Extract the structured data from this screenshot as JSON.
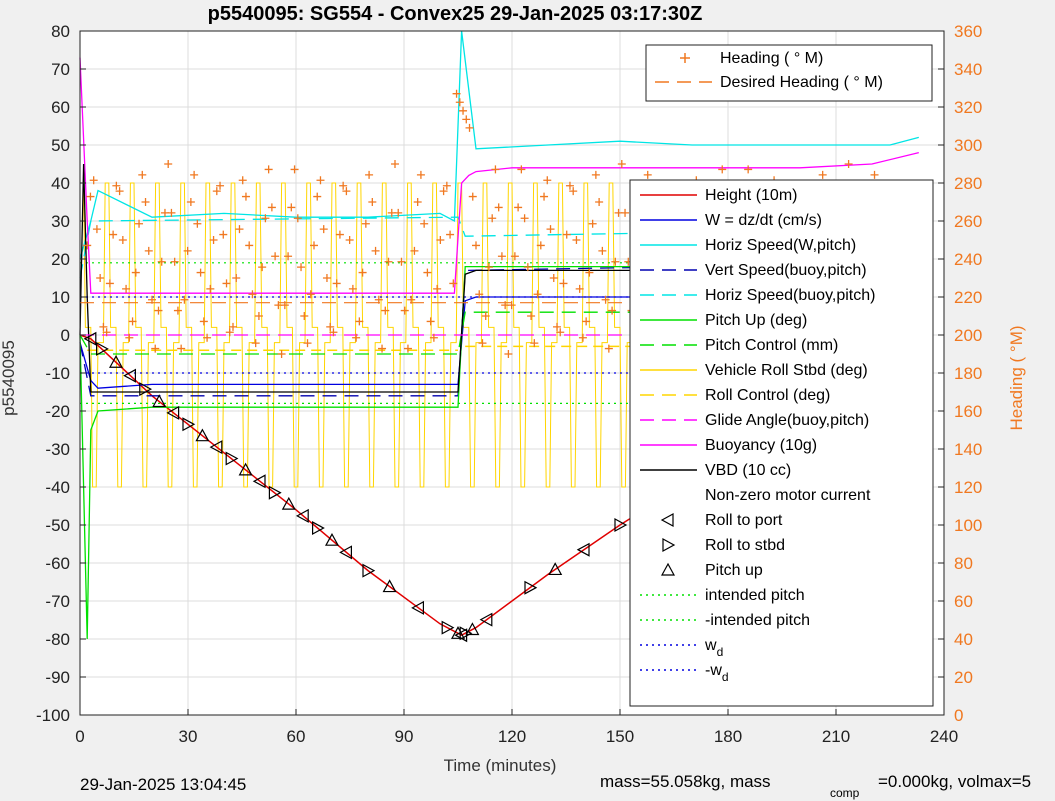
{
  "chart_data": {
    "type": "line",
    "title": "p5540095: SG554 - Convex25 29-Jan-2025 03:17:30Z",
    "xlabel": "Time (minutes)",
    "ylabel_left": "p5540095",
    "ylabel_right": "Heading (  °M)",
    "xlim": [
      0,
      240
    ],
    "ylim_left": [
      -100,
      80
    ],
    "ylim_right": [
      0,
      360
    ],
    "x_ticks": [
      "0",
      "30",
      "60",
      "90",
      "120",
      "150",
      "180",
      "210",
      "240"
    ],
    "y_left_ticks": [
      "80",
      "70",
      "60",
      "50",
      "40",
      "30",
      "20",
      "10",
      "0",
      "-10",
      "-20",
      "-30",
      "-40",
      "-50",
      "-60",
      "-70",
      "-80",
      "-90",
      "-100"
    ],
    "y_right_ticks": [
      "360",
      "340",
      "320",
      "300",
      "280",
      "260",
      "240",
      "220",
      "200",
      "180",
      "160",
      "140",
      "120",
      "100",
      "80",
      "60",
      "40",
      "20",
      "0"
    ],
    "grid": true,
    "legend_right_axis": {
      "placement": "top-right",
      "entries": [
        {
          "label": "Heading (  ° M)",
          "color": "#f07820",
          "style": "plus"
        },
        {
          "label": "Desired Heading (    ° M)",
          "color": "#f07820",
          "style": "dashed"
        }
      ]
    },
    "legend_main": {
      "placement": "right",
      "entries": [
        {
          "label": "Height (10m)",
          "color": "#e00000",
          "style": "solid"
        },
        {
          "label": "W = dz/dt (cm/s)",
          "color": "#0000e0",
          "style": "solid"
        },
        {
          "label": "Horiz Speed(W,pitch)",
          "color": "#00e5e5",
          "style": "solid"
        },
        {
          "label": "Vert Speed(buoy,pitch)",
          "color": "#0000b0",
          "style": "dashed"
        },
        {
          "label": "Horiz Speed(buoy,pitch)",
          "color": "#00e5e5",
          "style": "dashed"
        },
        {
          "label": "Pitch Up (deg)",
          "color": "#00e000",
          "style": "solid"
        },
        {
          "label": "Pitch Control (mm)",
          "color": "#00e000",
          "style": "dashed"
        },
        {
          "label": "Vehicle Roll Stbd (deg)",
          "color": "#ffd500",
          "style": "solid"
        },
        {
          "label": "Roll Control (deg)",
          "color": "#ffd500",
          "style": "dashed"
        },
        {
          "label": "Glide Angle(buoy,pitch)",
          "color": "#ff00ff",
          "style": "dashed"
        },
        {
          "label": "Buoyancy (10g)",
          "color": "#ff00ff",
          "style": "solid"
        },
        {
          "label": "VBD (10 cc)",
          "color": "#000000",
          "style": "solid"
        },
        {
          "label": "Non-zero motor current",
          "color": "#000000",
          "style": "none"
        },
        {
          "label": "Roll to port",
          "color": "#000000",
          "style": "tri-left"
        },
        {
          "label": "Roll to stbd",
          "color": "#000000",
          "style": "tri-right"
        },
        {
          "label": "Pitch up",
          "color": "#000000",
          "style": "tri-up"
        },
        {
          "label": "intended pitch",
          "color": "#00e000",
          "style": "dotted"
        },
        {
          "label": "-intended pitch",
          "color": "#00e000",
          "style": "dotted"
        },
        {
          "label": "w",
          "sub": "d",
          "color": "#0000e0",
          "style": "dotted"
        },
        {
          "label": "-w",
          "sub": "d",
          "color": "#0000e0",
          "style": "dotted"
        }
      ]
    },
    "series": [
      {
        "name": "Height (10m)",
        "color": "#e00000",
        "x": [
          0,
          3,
          20,
          40,
          60,
          80,
          100,
          106,
          110,
          130,
          150,
          170,
          190,
          210,
          233
        ],
        "y": [
          0,
          -1,
          -16,
          -31,
          -46,
          -62,
          -76,
          -79,
          -77,
          -63,
          -50,
          -38,
          -25,
          -12,
          -2
        ]
      },
      {
        "name": "W = dz/dt (cm/s)",
        "color": "#0000e0",
        "x": [
          0,
          3,
          5,
          20,
          40,
          60,
          80,
          100,
          105,
          107,
          110,
          130,
          150,
          170,
          190,
          210,
          225,
          233
        ],
        "y": [
          -2,
          -12,
          -14,
          -13,
          -13,
          -13,
          -13,
          -13,
          -13,
          9,
          10,
          10,
          10,
          10,
          11,
          11,
          12,
          12
        ]
      },
      {
        "name": "Horiz Speed(W,pitch)",
        "color": "#00e5e5",
        "x": [
          0,
          3,
          5,
          20,
          40,
          60,
          80,
          100,
          104,
          106,
          110,
          130,
          150,
          170,
          190,
          210,
          225,
          233
        ],
        "y": [
          20,
          30,
          38,
          31,
          32,
          31,
          31,
          32,
          30,
          80,
          49,
          50,
          51,
          50,
          50,
          50,
          50,
          52
        ]
      },
      {
        "name": "Vert Speed(buoy,pitch)",
        "color": "#0000b0",
        "x": [
          0,
          3,
          105,
          107,
          233
        ],
        "y": [
          -2,
          -16,
          -16,
          17,
          19
        ]
      },
      {
        "name": "Horiz Speed(buoy,pitch)",
        "color": "#00e5e5",
        "x": [
          0,
          3,
          105,
          107,
          233
        ],
        "y": [
          15,
          30,
          31,
          26,
          28
        ]
      },
      {
        "name": "Pitch Up (deg)",
        "color": "#00e000",
        "x": [
          0,
          2,
          3,
          5,
          20,
          40,
          60,
          80,
          100,
          105,
          107,
          120,
          140,
          160,
          180,
          200,
          220,
          233
        ],
        "y": [
          0,
          -80,
          -25,
          -20,
          -19,
          -19,
          -19,
          -19,
          -19,
          -19,
          18,
          18,
          18,
          18,
          18,
          18,
          18,
          19
        ]
      },
      {
        "name": "Pitch Control (mm)",
        "color": "#00e000",
        "x": [
          0,
          3,
          105,
          107,
          233
        ],
        "y": [
          0,
          -5,
          -5,
          6,
          6
        ]
      },
      {
        "name": "Buoyancy (10g)",
        "color": "#ff00ff",
        "x": [
          0,
          2,
          3,
          100,
          104,
          106,
          108,
          110,
          120,
          150,
          180,
          200,
          220,
          233
        ],
        "y": [
          73,
          30,
          11,
          11,
          11,
          40,
          42,
          43,
          44,
          44,
          44,
          44,
          45,
          48
        ]
      },
      {
        "name": "VBD (10 cc)",
        "color": "#000000",
        "x": [
          0,
          1,
          2,
          3,
          103,
          105,
          107,
          110,
          125,
          150,
          180,
          200,
          225,
          233
        ],
        "y": [
          0,
          45,
          10,
          -15,
          -15,
          -15,
          16,
          17,
          17,
          17,
          17,
          17,
          21,
          21
        ]
      },
      {
        "name": "Glide Angle(buoy,pitch)",
        "color": "#ff00ff",
        "x": [
          0,
          233
        ],
        "y": [
          0,
          0
        ]
      }
    ],
    "reference_lines": [
      {
        "name": "intended pitch",
        "y": 19,
        "color": "#00e000"
      },
      {
        "name": "-intended pitch",
        "y": -18,
        "color": "#00e000"
      },
      {
        "name": "w_d",
        "y": 10,
        "color": "#0000e0"
      },
      {
        "name": "-w_d",
        "y": -10,
        "color": "#0000e0"
      }
    ],
    "heading_series": {
      "name": "Heading (  ° M)",
      "color": "#f07820",
      "cycle_period_min": 7,
      "low_deg": 190,
      "high_deg": 290,
      "desired_heading_deg": 217
    },
    "motor_marker_times": [
      3,
      6,
      10,
      14,
      18,
      22,
      26,
      30,
      34,
      38,
      42,
      46,
      50,
      54,
      58,
      62,
      66,
      70,
      74,
      80,
      86,
      94,
      102,
      105,
      106,
      107,
      109,
      113,
      125,
      132,
      140,
      150,
      156,
      162,
      168,
      174,
      180,
      186,
      190,
      196,
      202,
      208,
      214,
      220,
      226,
      231
    ],
    "roll_events": {
      "ycap": 40,
      "ybottom": -40,
      "period_min": 7
    }
  },
  "footer": {
    "left": "29-Jan-2025 13:04:45",
    "right_prefix": "mass=55.058kg, mass",
    "right_sub": "comp",
    "right_suffix": "=0.000kg, volmax=5"
  },
  "colors": {
    "heading": "#f07820",
    "axes_bg": "#ffffff",
    "fig_bg": "#f0f0f0",
    "grid": "#dcdcdc"
  }
}
